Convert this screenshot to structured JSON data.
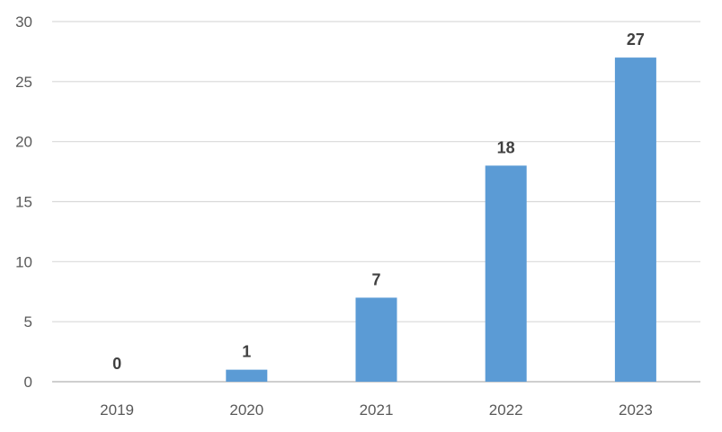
{
  "chart_data": {
    "type": "bar",
    "title": "",
    "xlabel": "",
    "ylabel": "",
    "categories": [
      "2019",
      "2020",
      "2021",
      "2022",
      "2023"
    ],
    "values": [
      0,
      1,
      7,
      18,
      27
    ],
    "data_labels": [
      "0",
      "1",
      "7",
      "18",
      "27"
    ],
    "ylim": [
      0,
      30
    ],
    "y_ticks": [
      0,
      5,
      10,
      15,
      20,
      25,
      30
    ],
    "y_tick_labels": [
      "0",
      "5",
      "10",
      "15",
      "20",
      "25",
      "30"
    ],
    "grid": true,
    "legend": "none",
    "bar_color": "#5b9bd5"
  }
}
